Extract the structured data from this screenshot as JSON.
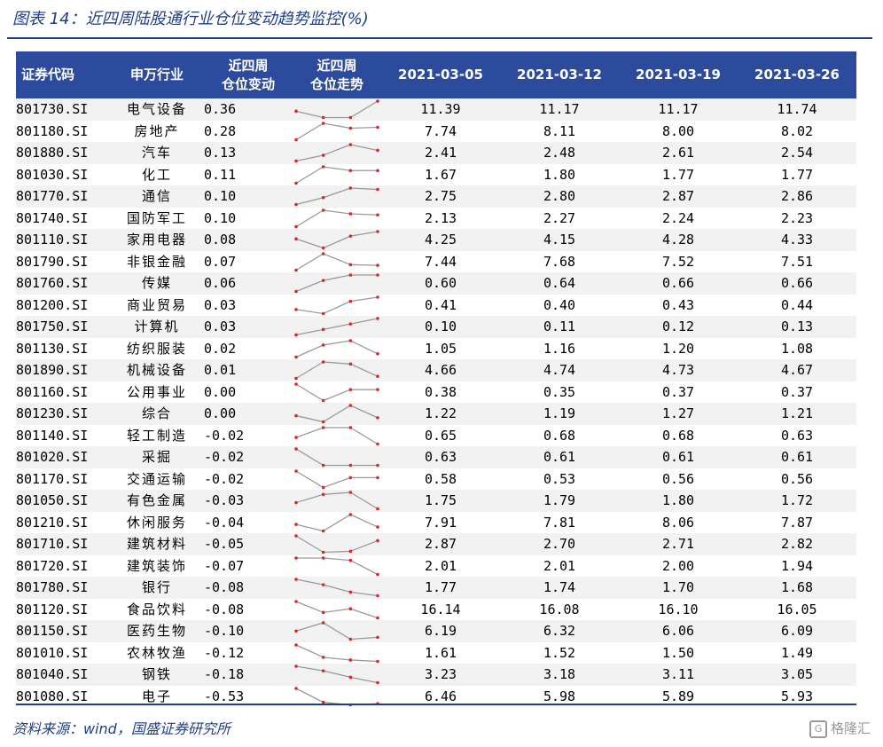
{
  "title": "图表 14：近四周陆股通行业仓位变动趋势监控(%)",
  "source": "资料来源：wind，国盛证券研究所",
  "watermark": "格隆汇",
  "watermark_icon": "G-logo-icon",
  "colors": {
    "header_bg": "#2d4b9c",
    "accent": "#1f3f8a",
    "spark_line": "#9a9a9a",
    "spark_dot": "#d9262c"
  },
  "headers": [
    "证券代码",
    "申万行业",
    "近四周\n仓位变动",
    "近四周\n仓位走势",
    "2021-03-05",
    "2021-03-12",
    "2021-03-19",
    "2021-03-26"
  ],
  "rows": [
    {
      "code": "801730.SI",
      "industry": "电气设备",
      "change": "0.36",
      "v": [
        "11.39",
        "11.17",
        "11.17",
        "11.74"
      ]
    },
    {
      "code": "801180.SI",
      "industry": "房地产",
      "change": "0.28",
      "v": [
        "7.74",
        "8.11",
        "8.00",
        "8.02"
      ]
    },
    {
      "code": "801880.SI",
      "industry": "汽车",
      "change": "0.13",
      "v": [
        "2.41",
        "2.48",
        "2.61",
        "2.54"
      ]
    },
    {
      "code": "801030.SI",
      "industry": "化工",
      "change": "0.11",
      "v": [
        "1.67",
        "1.80",
        "1.77",
        "1.77"
      ]
    },
    {
      "code": "801770.SI",
      "industry": "通信",
      "change": "0.10",
      "v": [
        "2.75",
        "2.80",
        "2.87",
        "2.86"
      ]
    },
    {
      "code": "801740.SI",
      "industry": "国防军工",
      "change": "0.10",
      "v": [
        "2.13",
        "2.27",
        "2.24",
        "2.23"
      ]
    },
    {
      "code": "801110.SI",
      "industry": "家用电器",
      "change": "0.08",
      "v": [
        "4.25",
        "4.15",
        "4.28",
        "4.33"
      ]
    },
    {
      "code": "801790.SI",
      "industry": "非银金融",
      "change": "0.07",
      "v": [
        "7.44",
        "7.68",
        "7.52",
        "7.51"
      ]
    },
    {
      "code": "801760.SI",
      "industry": "传媒",
      "change": "0.06",
      "v": [
        "0.60",
        "0.64",
        "0.66",
        "0.66"
      ]
    },
    {
      "code": "801200.SI",
      "industry": "商业贸易",
      "change": "0.03",
      "v": [
        "0.41",
        "0.40",
        "0.43",
        "0.44"
      ]
    },
    {
      "code": "801750.SI",
      "industry": "计算机",
      "change": "0.03",
      "v": [
        "0.10",
        "0.11",
        "0.12",
        "0.13"
      ]
    },
    {
      "code": "801130.SI",
      "industry": "纺织服装",
      "change": "0.02",
      "v": [
        "1.05",
        "1.16",
        "1.20",
        "1.08"
      ]
    },
    {
      "code": "801890.SI",
      "industry": "机械设备",
      "change": "0.01",
      "v": [
        "4.66",
        "4.74",
        "4.73",
        "4.67"
      ]
    },
    {
      "code": "801160.SI",
      "industry": "公用事业",
      "change": "0.00",
      "v": [
        "0.38",
        "0.35",
        "0.37",
        "0.37"
      ]
    },
    {
      "code": "801230.SI",
      "industry": "综合",
      "change": "0.00",
      "v": [
        "1.22",
        "1.19",
        "1.27",
        "1.21"
      ]
    },
    {
      "code": "801140.SI",
      "industry": "轻工制造",
      "change": "-0.02",
      "v": [
        "0.65",
        "0.68",
        "0.68",
        "0.63"
      ]
    },
    {
      "code": "801020.SI",
      "industry": "采掘",
      "change": "-0.02",
      "v": [
        "0.63",
        "0.61",
        "0.61",
        "0.61"
      ]
    },
    {
      "code": "801170.SI",
      "industry": "交通运输",
      "change": "-0.02",
      "v": [
        "0.58",
        "0.53",
        "0.56",
        "0.56"
      ]
    },
    {
      "code": "801050.SI",
      "industry": "有色金属",
      "change": "-0.03",
      "v": [
        "1.75",
        "1.79",
        "1.80",
        "1.72"
      ]
    },
    {
      "code": "801210.SI",
      "industry": "休闲服务",
      "change": "-0.04",
      "v": [
        "7.91",
        "7.81",
        "8.06",
        "7.87"
      ]
    },
    {
      "code": "801710.SI",
      "industry": "建筑材料",
      "change": "-0.05",
      "v": [
        "2.87",
        "2.70",
        "2.71",
        "2.82"
      ]
    },
    {
      "code": "801720.SI",
      "industry": "建筑装饰",
      "change": "-0.07",
      "v": [
        "2.01",
        "2.01",
        "2.00",
        "1.94"
      ]
    },
    {
      "code": "801780.SI",
      "industry": "银行",
      "change": "-0.08",
      "v": [
        "1.77",
        "1.74",
        "1.70",
        "1.68"
      ]
    },
    {
      "code": "801120.SI",
      "industry": "食品饮料",
      "change": "-0.08",
      "v": [
        "16.14",
        "16.08",
        "16.10",
        "16.05"
      ]
    },
    {
      "code": "801150.SI",
      "industry": "医药生物",
      "change": "-0.10",
      "v": [
        "6.19",
        "6.32",
        "6.06",
        "6.09"
      ]
    },
    {
      "code": "801010.SI",
      "industry": "农林牧渔",
      "change": "-0.12",
      "v": [
        "1.61",
        "1.52",
        "1.50",
        "1.49"
      ]
    },
    {
      "code": "801040.SI",
      "industry": "钢铁",
      "change": "-0.18",
      "v": [
        "3.23",
        "3.18",
        "3.11",
        "3.05"
      ]
    },
    {
      "code": "801080.SI",
      "industry": "电子",
      "change": "-0.53",
      "v": [
        "6.46",
        "5.98",
        "5.89",
        "5.93"
      ]
    }
  ]
}
